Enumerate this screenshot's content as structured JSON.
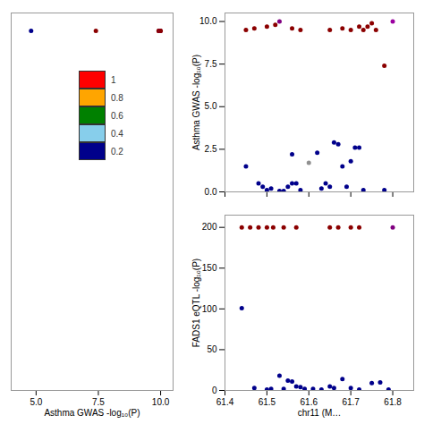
{
  "chart_data": [
    {
      "type": "scatter",
      "x": [
        4.8,
        7.4,
        9.92,
        9.93,
        9.94,
        9.95,
        9.96,
        9.97,
        9.98,
        9.99,
        10.0
      ],
      "values": [
        10.0,
        10.0,
        10.0,
        10.0,
        10.0,
        10.0,
        10.0,
        10.0,
        10.0,
        10.0,
        10.0
      ],
      "colors": [
        "#00008B",
        "#8B0000",
        "#8B0000",
        "#8B0000",
        "#8B0000",
        "#8B0000",
        "#8B0000",
        "#8B0000",
        "#8B0000",
        "#800080",
        "#8B0000"
      ],
      "xlabel": "Asthma GWAS -log₁₀(P)",
      "xlim": [
        4.0,
        10.5
      ],
      "ylim": [
        0,
        10.5
      ],
      "xticks": [
        {
          "value": 5.0,
          "label": "5.0"
        },
        7.5,
        {
          "value": 10.0,
          "label": "10.0"
        }
      ],
      "yticks": [],
      "tick_labels": "x",
      "series": [
        {
          "name": "1",
          "color": "#FF0000"
        },
        {
          "name": "0.8",
          "color": "#FFA500"
        },
        {
          "name": "0.6",
          "color": "#008000"
        },
        {
          "name": "0.4",
          "color": "#87CEEB"
        },
        {
          "name": "0.2",
          "color": "#00008B"
        }
      ],
      "legend": "center"
    },
    {
      "type": "scatter",
      "x": [
        61.45,
        61.47,
        61.5,
        61.52,
        61.53,
        61.56,
        61.58,
        61.65,
        61.68,
        61.7,
        61.72,
        61.73,
        61.74,
        61.75,
        61.76,
        61.78,
        61.8,
        61.45,
        61.48,
        61.49,
        61.5,
        61.51,
        61.53,
        61.54,
        61.55,
        61.56,
        61.57,
        61.58,
        61.56,
        61.6,
        61.62,
        61.63,
        61.64,
        61.65,
        61.66,
        61.67,
        61.68,
        61.69,
        61.7,
        61.71,
        61.72,
        61.73,
        61.78
      ],
      "values": [
        9.5,
        9.6,
        9.7,
        9.8,
        10.0,
        9.6,
        9.5,
        9.5,
        9.6,
        9.5,
        9.7,
        9.5,
        9.7,
        9.9,
        9.5,
        7.4,
        10.0,
        1.5,
        0.5,
        0.3,
        0.1,
        0.2,
        0.05,
        0.05,
        0.3,
        0.5,
        0.5,
        0.1,
        2.2,
        1.7,
        2.3,
        0.2,
        0.5,
        0.3,
        2.9,
        2.8,
        1.5,
        0.3,
        1.8,
        2.6,
        2.6,
        0.1,
        0.1
      ],
      "colors": [
        "#8B0000",
        "#8B0000",
        "#8B0000",
        "#8B0000",
        "#800080",
        "#8B0000",
        "#8B0000",
        "#8B0000",
        "#8B0000",
        "#8B0000",
        "#8B0000",
        "#8B0000",
        "#8B0000",
        "#8B0000",
        "#8B0000",
        "#8B0000",
        "#9B00A0",
        "#00008B",
        "#00008B",
        "#00008B",
        "#00008B",
        "#00008B",
        "#00008B",
        "#00008B",
        "#00008B",
        "#00008B",
        "#00008B",
        "#00008B",
        "#00008B",
        "#909090",
        "#00008B",
        "#00008B",
        "#00008B",
        "#00008B",
        "#00008B",
        "#00008B",
        "#00008B",
        "#00008B",
        "#00008B",
        "#00008B",
        "#00008B",
        "#00008B",
        "#00008B"
      ],
      "ylabel": "Asthma GWAS -log₁₀(P)",
      "xlim": [
        61.4,
        61.85
      ],
      "ylim": [
        0,
        10.5
      ],
      "xticks": [
        61.4,
        61.5,
        61.6,
        61.7,
        61.8
      ],
      "yticks": [
        {
          "value": 0.0,
          "label": "0.0"
        },
        2.5,
        {
          "value": 5.0,
          "label": "5.0"
        },
        7.5,
        {
          "value": 10.0,
          "label": "10.0"
        }
      ],
      "tick_labels": "y"
    },
    {
      "type": "scatter",
      "x": [
        61.44,
        61.46,
        61.48,
        61.5,
        61.515,
        61.54,
        61.57,
        61.65,
        61.67,
        61.7,
        61.72,
        61.8,
        61.44,
        61.47,
        61.5,
        61.51,
        61.53,
        61.54,
        61.55,
        61.56,
        61.57,
        61.58,
        61.59,
        61.61,
        61.63,
        61.65,
        61.66,
        61.68,
        61.7,
        61.72,
        61.75,
        61.77,
        61.79
      ],
      "values": [
        200,
        200,
        200,
        200,
        200,
        200,
        200,
        200,
        200,
        200,
        200,
        200,
        101,
        3,
        1,
        2,
        18,
        2,
        12,
        11,
        5,
        4,
        2,
        2,
        1,
        5,
        3,
        14,
        3,
        1,
        9,
        10,
        1
      ],
      "colors": [
        "#8B0000",
        "#8B0000",
        "#8B0000",
        "#8B0000",
        "#8B0000",
        "#8B0000",
        "#8B0000",
        "#8B0000",
        "#8B0000",
        "#8B0000",
        "#8B0000",
        "#800080",
        "#00008B",
        "#00008B",
        "#00008B",
        "#00008B",
        "#00008B",
        "#00008B",
        "#00008B",
        "#00008B",
        "#00008B",
        "#00008B",
        "#00008B",
        "#00008B",
        "#00008B",
        "#00008B",
        "#00008B",
        "#00008B",
        "#00008B",
        "#00008B",
        "#00008B",
        "#00008B",
        "#00008B"
      ],
      "ylabel": "FADS1 eQTL -log₁₀(P)",
      "xlabel": "chr11 (M…",
      "xlim": [
        61.4,
        61.85
      ],
      "ylim": [
        0,
        215
      ],
      "xticks": [
        61.4,
        61.5,
        61.6,
        61.7,
        61.8
      ],
      "yticks": [
        0,
        50,
        100,
        150,
        200
      ]
    }
  ]
}
